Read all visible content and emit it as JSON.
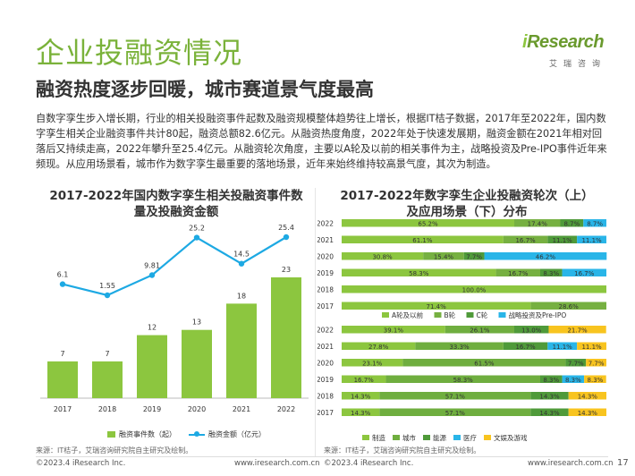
{
  "header": {
    "title": "企业投融资情况",
    "subtitle": "融资热度逐步回暖，城市赛道景气度最高",
    "logo_main": "Research",
    "logo_i": "i",
    "logo_sub": "艾瑞咨询"
  },
  "body_text": "自数字孪生步入增长期，行业的相关投融资事件起数及融资规模整体趋势往上增长，根据IT桔子数据，2017年至2022年，国内数字孪生相关企业融资事件共计80起，融资总额82.6亿元。从融资热度角度，2022年处于快速发展期，融资金额在2021年相对回落后又持续走高，2022年攀升至25.4亿元。从融资轮次角度，主要以A轮及以前的相关事件为主，战略投资及Pre-IPO事件近年来频现。从应用场景看，城市作为数字孪生最重要的落地场景，近年来始终维持较高景气度，其次为制造。",
  "left_chart": {
    "title_line1": "2017-2022年国内数字孪生相关投融资事件数",
    "title_line2": "量及投融资金额",
    "legend_bar": "融资事件数（起）",
    "legend_line": "融资金额（亿元）",
    "source": "来源：IT桔子，艾瑞咨询研究院自主研究及绘制。"
  },
  "right_chart": {
    "title_line1": "2017-2022年数字孪生企业投融资轮次（上）",
    "title_line2": "及应用场景（下）分布",
    "source": "来源：IT桔子，艾瑞咨询研究院自主研究及绘制。"
  },
  "footer": {
    "left_copyright": "©2023.4 iResearch Inc.",
    "left_url": "www.iresearch.com.cn",
    "right_copyright": "©2023.4 iResearch Inc.",
    "right_url": "www.iresearch.com.cn",
    "page_number": "17"
  },
  "colors": {
    "bar_green": "#8cc63f",
    "line_blue": "#1da9e3",
    "round_a": "#8cc63f",
    "round_b": "#76b041",
    "round_c": "#4f9a3a",
    "round_strategic": "#29b5e8",
    "scene_manufacturing": "#8cc63f",
    "scene_city": "#6fae3f",
    "scene_energy": "#4f9a3a",
    "scene_medical": "#29b5e8",
    "scene_culture": "#f8c41f"
  },
  "chart_data": [
    {
      "type": "bar",
      "categories": [
        "2017",
        "2018",
        "2019",
        "2020",
        "2021",
        "2022"
      ],
      "series": [
        {
          "name": "融资事件数（起）",
          "type": "bar",
          "values": [
            7,
            7,
            12,
            13,
            18,
            23
          ]
        },
        {
          "name": "融资金额（亿元）",
          "type": "line",
          "values": [
            6.1,
            1.55,
            9.81,
            25.2,
            14.5,
            25.4
          ]
        }
      ]
    },
    {
      "type": "bar",
      "stacked": true,
      "orientation": "horizontal",
      "categories": [
        "2022",
        "2021",
        "2020",
        "2019",
        "2018",
        "2017"
      ],
      "series": [
        {
          "name": "A轮及以前",
          "values": [
            65.2,
            61.1,
            30.8,
            58.3,
            100.0,
            71.4
          ]
        },
        {
          "name": "B轮",
          "values": [
            17.4,
            16.7,
            15.4,
            16.7,
            0,
            28.6
          ]
        },
        {
          "name": "C轮",
          "values": [
            8.7,
            11.1,
            7.7,
            8.3,
            0,
            0
          ]
        },
        {
          "name": "战略投资及Pre-IPO",
          "values": [
            8.7,
            11.1,
            46.2,
            16.7,
            0,
            0
          ]
        }
      ]
    },
    {
      "type": "bar",
      "stacked": true,
      "orientation": "horizontal",
      "categories": [
        "2022",
        "2021",
        "2020",
        "2019",
        "2018",
        "2017"
      ],
      "series": [
        {
          "name": "制造",
          "values": [
            39.1,
            27.8,
            23.1,
            16.7,
            14.3,
            14.3
          ]
        },
        {
          "name": "城市",
          "values": [
            26.1,
            33.3,
            61.5,
            58.3,
            57.1,
            57.1
          ]
        },
        {
          "name": "能源",
          "values": [
            13.0,
            16.7,
            7.7,
            8.3,
            14.3,
            14.3
          ]
        },
        {
          "name": "医疗",
          "values": [
            0,
            11.1,
            0,
            8.3,
            0,
            0
          ]
        },
        {
          "name": "文娱及游戏",
          "values": [
            21.7,
            11.1,
            7.7,
            8.3,
            14.3,
            14.3
          ]
        }
      ]
    }
  ]
}
